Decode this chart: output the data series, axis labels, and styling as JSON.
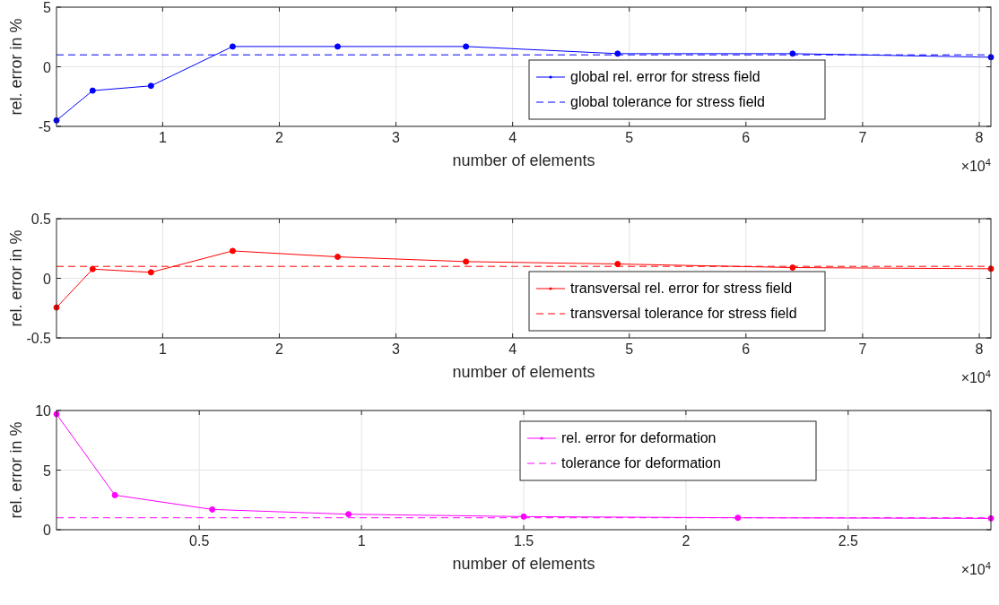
{
  "chart_data": [
    {
      "type": "line",
      "xlabel": "number of elements",
      "ylabel": "rel. error in %",
      "annotations": [
        "×10$^{4}$"
      ],
      "x": [
        0.09,
        0.4,
        0.9,
        1.6,
        2.5,
        3.6,
        4.9,
        6.4,
        8.1
      ],
      "xlim": [
        0.09,
        8.1
      ],
      "xticks": [
        1,
        2,
        3,
        4,
        5,
        6,
        7,
        8
      ],
      "ylim": [
        -5,
        5
      ],
      "yticks": [
        -5,
        0,
        5
      ],
      "grid": true,
      "legend": "bottom right",
      "marker": "circle",
      "line_style": "solid",
      "series": [
        {
          "name": "global rel. error for stress field",
          "color": "#0000ff",
          "values": [
            -4.5,
            -2.0,
            -1.6,
            1.7,
            1.7,
            1.7,
            1.1,
            1.1,
            0.8
          ]
        }
      ],
      "ref_lines": [
        {
          "axis": "y",
          "value": 1,
          "label": "global tolerance for stress field",
          "color": "#0000ff",
          "line_style": "dashed"
        }
      ]
    },
    {
      "type": "line",
      "xlabel": "number of elements",
      "ylabel": "rel. error in %",
      "annotations": [
        "×10$^{4}$"
      ],
      "x": [
        0.09,
        0.4,
        0.9,
        1.6,
        2.5,
        3.6,
        4.9,
        6.4,
        8.1
      ],
      "xlim": [
        0.09,
        8.1
      ],
      "xticks": [
        1,
        2,
        3,
        4,
        5,
        6,
        7,
        8
      ],
      "ylim": [
        -0.5,
        0.5
      ],
      "yticks": [
        -0.5,
        0,
        0.5
      ],
      "grid": true,
      "legend": "bottom right",
      "marker": "circle",
      "line_style": "solid",
      "series": [
        {
          "name": "transversal rel. error for stress field",
          "color": "#ff0000",
          "values": [
            -0.245,
            0.077,
            0.05,
            0.23,
            0.18,
            0.14,
            0.12,
            0.09,
            0.08
          ]
        }
      ],
      "ref_lines": [
        {
          "axis": "y",
          "value": 0.1,
          "label": "transversal tolerance for stress field",
          "color": "#ff0000",
          "line_style": "dashed"
        }
      ]
    },
    {
      "type": "line",
      "xlabel": "number of elements",
      "ylabel": "rel. error in %",
      "annotations": [
        "×10$^{4}$"
      ],
      "x": [
        0.06,
        0.24,
        0.54,
        0.96,
        1.5,
        2.16,
        2.94
      ],
      "xlim": [
        0.06,
        2.94
      ],
      "xticks": [
        0.5,
        1,
        1.5,
        2,
        2.5
      ],
      "ylim": [
        0,
        10
      ],
      "yticks": [
        0,
        5,
        10
      ],
      "grid": true,
      "legend": "top right",
      "marker": "circle",
      "line_style": "solid",
      "series": [
        {
          "name": "rel. error for deformation",
          "color": "#ff00ff",
          "values": [
            9.7,
            2.9,
            1.7,
            1.3,
            1.1,
            1.0,
            0.95
          ]
        }
      ],
      "ref_lines": [
        {
          "axis": "y",
          "value": 1,
          "label": "tolerance for deformation",
          "color": "#ff00ff",
          "line_style": "dashed"
        }
      ]
    }
  ]
}
